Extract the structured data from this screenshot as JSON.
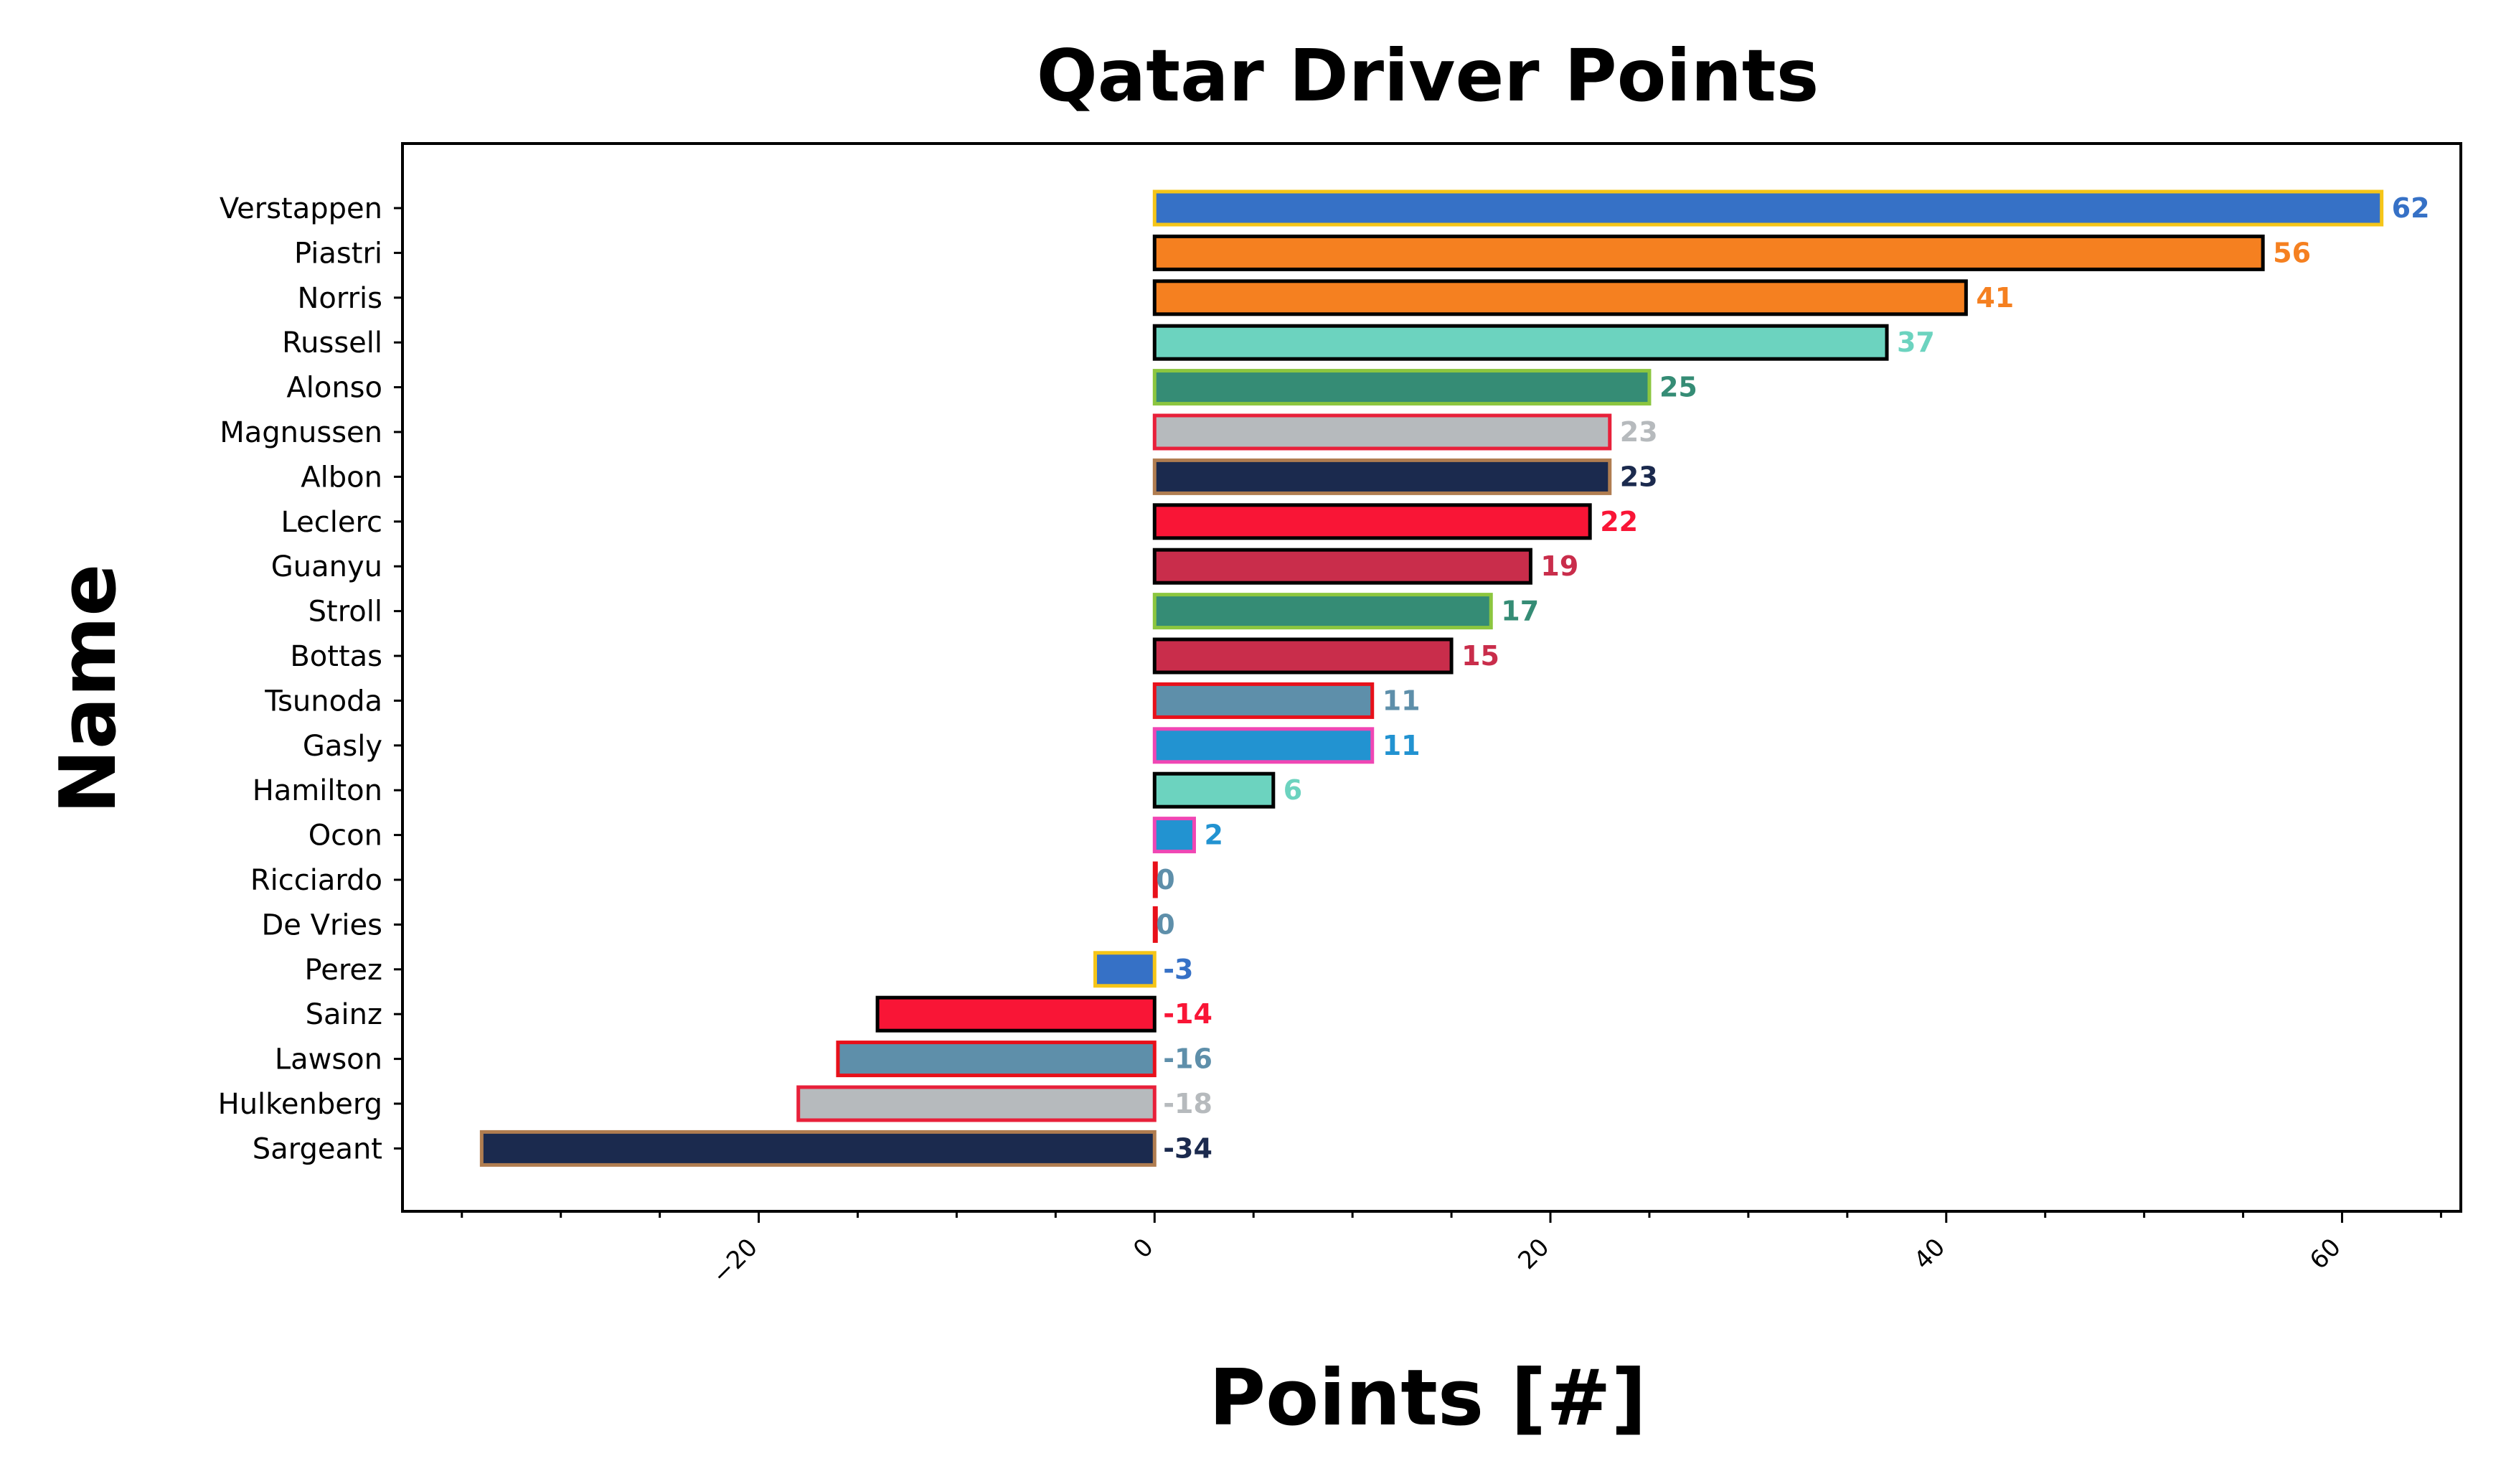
{
  "chart_data": {
    "type": "bar",
    "orientation": "horizontal",
    "title": "Qatar Driver Points",
    "xlabel": "Points [#]",
    "ylabel": "Name",
    "xlim": [
      -38,
      66
    ],
    "xticks": [
      -20,
      0,
      20,
      40,
      60
    ],
    "xtick_labels": [
      "−20",
      "0",
      "20",
      "40",
      "60"
    ],
    "grid": false,
    "legend": "none",
    "categories": [
      "Verstappen",
      "Piastri",
      "Norris",
      "Russell",
      "Alonso",
      "Magnussen",
      "Albon",
      "Leclerc",
      "Guanyu",
      "Stroll",
      "Bottas",
      "Tsunoda",
      "Gasly",
      "Hamilton",
      "Ocon",
      "Ricciardo",
      "De Vries",
      "Perez",
      "Sainz",
      "Lawson",
      "Hulkenberg",
      "Sargeant"
    ],
    "values": [
      62,
      56,
      41,
      37,
      25,
      23,
      23,
      22,
      19,
      17,
      15,
      11,
      11,
      6,
      2,
      0,
      0,
      -3,
      -14,
      -16,
      -18,
      -34
    ],
    "value_labels": [
      "62",
      "56",
      "41",
      "37",
      "25",
      "23",
      "23",
      "22",
      "19",
      "17",
      "15",
      "11",
      "11",
      "6",
      "2",
      "0",
      "0",
      "-3",
      "-14",
      "-16",
      "-18",
      "-34"
    ],
    "fill_colors": [
      "#3671C6",
      "#F58020",
      "#F58020",
      "#6CD3BF",
      "#358C75",
      "#B6BABD",
      "#1B2A4E",
      "#F91536",
      "#C92D4B",
      "#358C75",
      "#C92D4B",
      "#5E8FAA",
      "#2293D1",
      "#6CD3BF",
      "#2293D1",
      "#5E8FAA",
      "#5E8FAA",
      "#3671C6",
      "#F91536",
      "#5E8FAA",
      "#B6BABD",
      "#1B2A4E"
    ],
    "edge_colors": [
      "#F5C518",
      "#000000",
      "#000000",
      "#000000",
      "#8CC63F",
      "#E8203A",
      "#B07D50",
      "#000000",
      "#000000",
      "#8CC63F",
      "#000000",
      "#E8101A",
      "#F046B4",
      "#000000",
      "#F046B4",
      "#E8101A",
      "#E8101A",
      "#F5C518",
      "#000000",
      "#E8101A",
      "#E8203A",
      "#B07D50"
    ]
  }
}
